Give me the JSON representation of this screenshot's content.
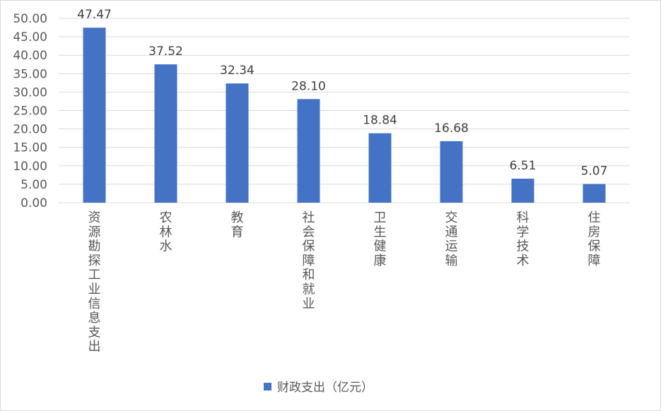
{
  "chart_data": {
    "type": "bar",
    "categories": [
      "资源勘探工业信息支出",
      "农林水",
      "教育",
      "社会保障和就业",
      "卫生健康",
      "交通运输",
      "科学技术",
      "住房保障"
    ],
    "series": [
      {
        "name": "财政支出（亿元）",
        "values": [
          47.47,
          37.52,
          32.34,
          28.1,
          18.84,
          16.68,
          6.51,
          5.07
        ],
        "color": "#4472C4"
      }
    ],
    "data_labels": [
      "47.47",
      "37.52",
      "32.34",
      "28.10",
      "18.84",
      "16.68",
      "6.51",
      "5.07"
    ],
    "y_ticks": [
      "0.00",
      "5.00",
      "10.00",
      "15.00",
      "20.00",
      "25.00",
      "30.00",
      "35.00",
      "40.00",
      "45.00",
      "50.00"
    ],
    "ylim": [
      0,
      50
    ],
    "title": "",
    "xlabel": "",
    "ylabel": "",
    "grid": true,
    "legend_position": "bottom",
    "gridline_color": "#d9d9d9",
    "text_color": "#595959"
  }
}
